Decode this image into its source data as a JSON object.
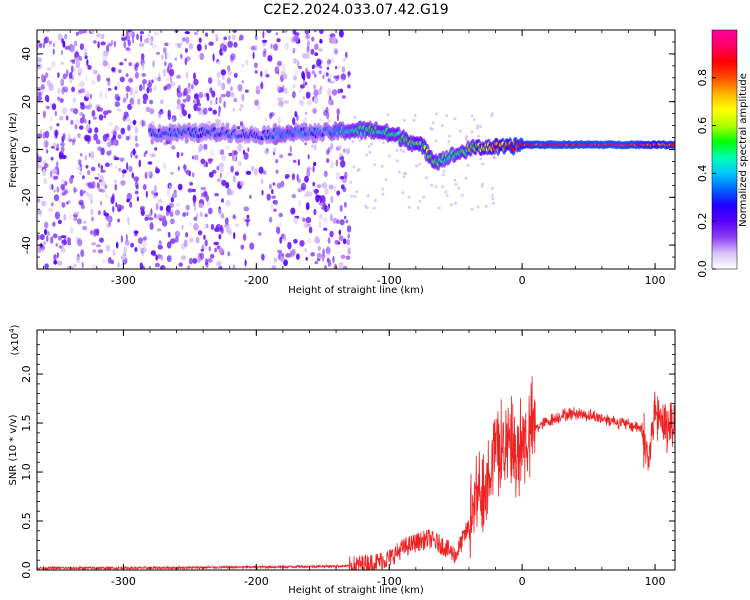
{
  "title": "C2E2.2024.033.07.42.G19",
  "chart_data": [
    {
      "type": "heatmap",
      "title": "",
      "xlabel": "Height of straight line (km)",
      "ylabel": "Frequency (Hz)",
      "xlim": [
        -365,
        115
      ],
      "ylim": [
        -50,
        50
      ],
      "x_ticks": [
        -300,
        -200,
        -100,
        0,
        100
      ],
      "y_ticks": [
        -40,
        -20,
        0,
        20,
        40
      ],
      "colorbar": {
        "label": "Normalized spectral amplitude",
        "range": [
          0,
          1
        ],
        "ticks": [
          "0.0",
          "0.2",
          "0.4",
          "0.6",
          "0.8"
        ],
        "colormap": [
          "#ffffff",
          "#d9c2f7",
          "#8c3cf0",
          "#5a00ff",
          "#1e00ff",
          "#0064ff",
          "#00c8ff",
          "#00ffb4",
          "#00ff00",
          "#b4ff00",
          "#ffff00",
          "#ffb400",
          "#ff4b00",
          "#ff0000",
          "#ff0064",
          "#ff00a0"
        ]
      },
      "ridge": {
        "x": [
          -280,
          -250,
          -220,
          -200,
          -180,
          -150,
          -130,
          -110,
          -90,
          -75,
          -65,
          -55,
          -45,
          -35,
          -25,
          -10,
          0,
          20,
          50,
          80,
          100,
          115
        ],
        "y": [
          7,
          7,
          7,
          6,
          7,
          7,
          8,
          8,
          5,
          1,
          -5,
          -3,
          -1,
          1,
          1,
          1,
          2,
          2,
          2,
          2,
          2,
          2
        ],
        "amplitude": [
          0.3,
          0.3,
          0.3,
          0.25,
          0.35,
          0.3,
          0.45,
          0.5,
          0.5,
          0.55,
          0.5,
          0.45,
          0.5,
          0.6,
          0.7,
          0.8,
          0.85,
          0.9,
          0.9,
          0.9,
          0.8,
          0.85
        ]
      }
    },
    {
      "type": "line",
      "title": "",
      "xlabel": "Height of straight line (km)",
      "ylabel": "SNR (10 * v/v)",
      "y_multiplier": "(x10",
      "y_multiplier_exp": "4",
      "y_multiplier_close": ")",
      "xlim": [
        -365,
        115
      ],
      "ylim": [
        0,
        2.45
      ],
      "x_ticks": [
        -300,
        -200,
        -100,
        0,
        100
      ],
      "y_ticks": [
        "0.0",
        "0.5",
        "1.0",
        "1.5",
        "2.0"
      ],
      "color": "#ee2222",
      "x": [
        -365,
        -300,
        -200,
        -130,
        -110,
        -100,
        -90,
        -80,
        -70,
        -60,
        -50,
        -45,
        -40,
        -35,
        -30,
        -25,
        -20,
        -15,
        -10,
        -5,
        0,
        10,
        20,
        30,
        40,
        50,
        60,
        70,
        80,
        90,
        95,
        100,
        103,
        105,
        110,
        115
      ],
      "y": [
        0.02,
        0.02,
        0.03,
        0.04,
        0.08,
        0.12,
        0.22,
        0.28,
        0.32,
        0.25,
        0.15,
        0.3,
        0.45,
        0.65,
        0.85,
        1.05,
        1.2,
        1.3,
        1.25,
        1.15,
        1.3,
        1.45,
        1.52,
        1.58,
        1.6,
        1.58,
        1.55,
        1.52,
        1.48,
        1.45,
        1.1,
        1.6,
        1.55,
        1.45,
        1.5,
        1.52
      ]
    }
  ]
}
